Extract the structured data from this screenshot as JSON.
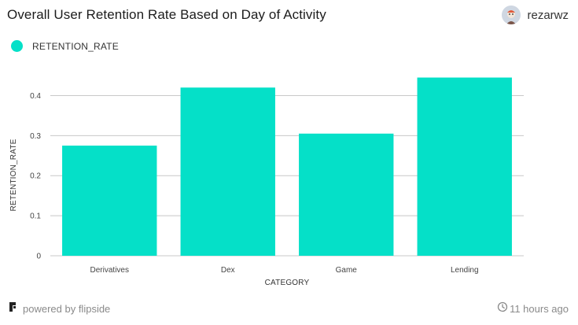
{
  "header": {
    "title": "Overall User Retention Rate Based on Day of Activity",
    "author": "rezarwz"
  },
  "footer": {
    "powered_by": "powered by flipside",
    "timestamp": "11 hours ago"
  },
  "icons": {
    "brand": "flipside-logo-icon",
    "time": "clock-icon",
    "avatar": "user-avatar"
  },
  "colors": {
    "bar": "#05e0c8",
    "grid": "#c8c8c8"
  },
  "chart_data": {
    "type": "bar",
    "categories": [
      "Derivatives",
      "Dex",
      "Game",
      "Lending"
    ],
    "series": [
      {
        "name": "RETENTION_RATE",
        "values": [
          0.275,
          0.42,
          0.305,
          0.445
        ]
      }
    ],
    "xlabel": "CATEGORY",
    "ylabel": "RETENTION_RATE",
    "ylim": [
      0,
      0.45
    ],
    "yticks": [
      0,
      0.1,
      0.2,
      0.3,
      0.4
    ],
    "ytick_labels": [
      "0",
      "0.1",
      "0.2",
      "0.3",
      "0.4"
    ],
    "grid": true,
    "legend_position": "top-left"
  }
}
